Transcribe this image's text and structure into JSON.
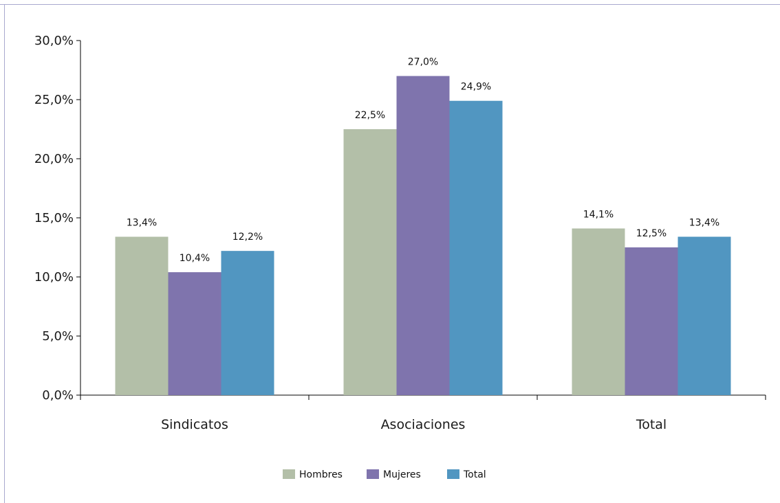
{
  "chart_data": {
    "type": "bar",
    "categories": [
      "Sindicatos",
      "Asociaciones",
      "Total"
    ],
    "series": [
      {
        "name": "Hombres",
        "values": [
          13.4,
          22.5,
          14.1
        ],
        "labels": [
          "13,4%",
          "22,5%",
          "14,1%"
        ],
        "color": "#b3bfa8"
      },
      {
        "name": "Mujeres",
        "values": [
          10.4,
          27.0,
          12.5
        ],
        "labels": [
          "10,4%",
          "27,0%",
          "12,5%"
        ],
        "color": "#7f74ad"
      },
      {
        "name": "Total",
        "values": [
          12.2,
          24.9,
          13.4
        ],
        "labels": [
          "12,2%",
          "24,9%",
          "13,4%"
        ],
        "color": "#5196c1"
      }
    ],
    "ylim": [
      0,
      30
    ],
    "yticks": [
      0,
      5,
      10,
      15,
      20,
      25,
      30
    ],
    "ytick_labels": [
      "0,0%",
      "5,0%",
      "10,0%",
      "15,0%",
      "20,0%",
      "25,0%",
      "30,0%"
    ],
    "grid": false,
    "legend_position": "bottom-center"
  }
}
